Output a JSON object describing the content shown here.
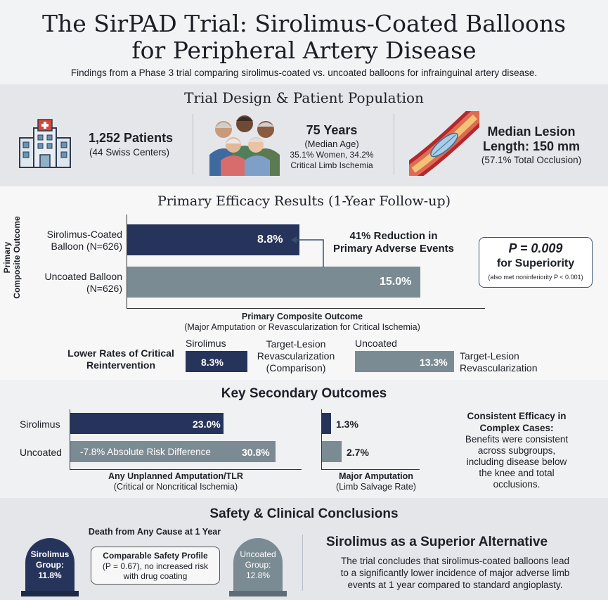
{
  "header": {
    "title_line1": "The SirPAD Trial: Sirolimus-Coated Balloons",
    "title_line2": "for Peripheral Artery Disease",
    "subtitle": "Findings from a Phase 3 trial comparing sirolimus-coated vs. uncoated balloons for infrainguinal artery disease."
  },
  "design": {
    "heading": "Trial Design & Patient Population",
    "patients_big": "1,252 Patients",
    "patients_small": "(44 Swiss Centers)",
    "age_big": "75 Years",
    "age_small1": "(Median Age)",
    "age_small2": "35.1% Women, 34.2%",
    "age_small3": "Critical Limb Ischemia",
    "lesion_big1": "Median Lesion",
    "lesion_big2": "Length: 150 mm",
    "lesion_small": "(57.1% Total Occlusion)",
    "icons": [
      "hospital-icon",
      "patients-group-icon",
      "artery-balloon-icon"
    ]
  },
  "primary": {
    "heading": "Primary Efficacy Results (1-Year Follow-up)",
    "y_axis_label_line1": "Primary",
    "y_axis_label_line2": "Composite Outcome",
    "bar1_label1": "Sirolimus-Coated",
    "bar1_label2": "Balloon (N=626)",
    "bar1_value_text": "8.8%",
    "bar2_label1": "Uncoated Balloon",
    "bar2_label2": "(N=626)",
    "bar2_value_text": "15.0%",
    "reduction1": "41% Reduction in",
    "reduction2": "Primary Adverse Events",
    "pvalue": "P = 0.009",
    "pvalue_sub": "for Superiority",
    "pvalue_note": "(also met noninferiority P < 0.001)",
    "xlabel1": "Primary Composite Outcome",
    "xlabel2": "(Major Amputation or Revascularization for Critical Ischemia)"
  },
  "chart_data": [
    {
      "type": "bar",
      "orientation": "horizontal",
      "categories": [
        "Sirolimus-Coated Balloon (N=626)",
        "Uncoated Balloon (N=626)"
      ],
      "values": [
        8.8,
        15.0
      ],
      "xlabel": "Primary Composite Outcome",
      "ylabel": "Primary Composite Outcome",
      "units": "%"
    },
    {
      "type": "bar",
      "orientation": "horizontal",
      "categories": [
        "Sirolimus",
        "Uncoated"
      ],
      "values": [
        8.3,
        13.3
      ],
      "xlabel": "Target-Lesion Revascularization",
      "units": "%"
    },
    {
      "type": "bar",
      "orientation": "horizontal",
      "categories": [
        "Sirolimus",
        "Uncoated"
      ],
      "values": [
        23.0,
        30.8
      ],
      "xlabel": "Any Unplanned Amputation/TLR",
      "units": "%"
    },
    {
      "type": "bar",
      "orientation": "horizontal",
      "categories": [
        "Sirolimus",
        "Uncoated"
      ],
      "values": [
        1.3,
        2.7
      ],
      "xlabel": "Major Amputation",
      "units": "%"
    }
  ],
  "tlr": {
    "title1": "Lower Rates of Critical",
    "title2": "Reintervention",
    "sir_label": "Sirolimus",
    "sir_value": "8.3%",
    "mid1": "Target-Lesion",
    "mid2": "Revascularization",
    "mid3": "(Comparison)",
    "unc_label": "Uncoated",
    "unc_value": "13.3%",
    "right1": "Target-Lesion",
    "right2": "Revascularization"
  },
  "secondary": {
    "heading": "Key Secondary Outcomes",
    "row1": "Sirolimus",
    "row2": "Uncoated",
    "amp_tlr_sir": "23.0%",
    "amp_tlr_unc": "30.8%",
    "amp_tlr_diff": "-7.8% Absolute Risk Difference",
    "amp_tlr_label1": "Any Unplanned Amputation/TLR",
    "amp_tlr_label2": "(Critical or Noncritical Ischemia)",
    "major_sir": "1.3%",
    "major_unc": "2.7%",
    "major_label1": "Major Amputation",
    "major_label2": "(Limb Salvage Rate)",
    "consistent_title1": "Consistent Efficacy in",
    "consistent_title2": "Complex Cases:",
    "consistent_body1": "Benefits were consistent",
    "consistent_body2": "across subgroups,",
    "consistent_body3": "including disease below",
    "consistent_body4": "the knee and total",
    "consistent_body5": "occlusions."
  },
  "safety": {
    "heading": "Safety & Clinical Conclusions",
    "death_title": "Death from Any Cause at 1 Year",
    "stone1_l1": "Sirolimus",
    "stone1_l2": "Group:",
    "stone1_l3": "11.8%",
    "stone2_l1": "Uncoated",
    "stone2_l2": "Group:",
    "stone2_l3": "12.8%",
    "box_title": "Comparable Safety Profile",
    "box_l1": "(P = 0.67), no increased risk",
    "box_l2": "with drug coating",
    "concl_title": "Sirolimus as a Superior Alternative",
    "concl_l1": "The trial concludes that sirolimus-coated balloons lead",
    "concl_l2": "to a significantly lower incidence of major adverse limb",
    "concl_l3": "events at 1 year compared to standard angioplasty."
  },
  "colors": {
    "navy": "#26345c",
    "slate": "#7b8b93",
    "band": "#e4e6ea"
  }
}
